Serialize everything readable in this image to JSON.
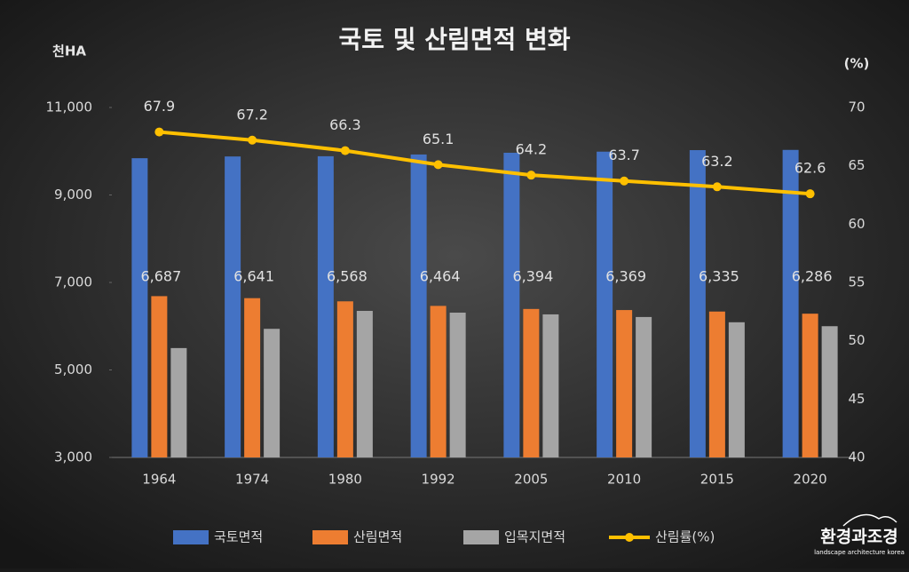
{
  "chart_data": {
    "type": "bar",
    "title": "국토 및 산림면적 변화",
    "y_label": "천HA",
    "y2_label": "(%)",
    "categories": [
      "1964",
      "1974",
      "1980",
      "1992",
      "2005",
      "2010",
      "2015",
      "2020"
    ],
    "series": [
      {
        "name": "국토면적",
        "color": "#4472c4",
        "values": [
          9840,
          9880,
          9885,
          9925,
          9965,
          9990,
          10025,
          10030
        ]
      },
      {
        "name": "산림면적",
        "color": "#ed7d31",
        "values": [
          6687,
          6641,
          6568,
          6464,
          6394,
          6369,
          6335,
          6286
        ],
        "value_labels": [
          "6,687",
          "6,641",
          "6,568",
          "6,464",
          "6,394",
          "6,369",
          "6,335",
          "6,286"
        ]
      },
      {
        "name": "입목지면적",
        "color": "#a5a5a5",
        "values": [
          5500,
          5940,
          6350,
          6310,
          6270,
          6210,
          6090,
          6000
        ]
      },
      {
        "name": "산림률(%)",
        "type": "line",
        "axis": "y2",
        "color": "#ffc000",
        "values": [
          67.9,
          67.2,
          66.3,
          65.1,
          64.2,
          63.7,
          63.2,
          62.6
        ]
      }
    ],
    "ylim": [
      3000,
      11000
    ],
    "yticks": [
      {
        "value": 3000,
        "label": "3,000"
      },
      {
        "value": 5000,
        "label": "5,000"
      },
      {
        "value": 7000,
        "label": "7,000"
      },
      {
        "value": 9000,
        "label": "9,000"
      },
      {
        "value": 11000,
        "label": "11,000"
      }
    ],
    "y2lim": [
      40,
      70
    ],
    "y2ticks": [
      40,
      45,
      50,
      55,
      60,
      65,
      70
    ],
    "legend": "bottom"
  },
  "watermark": {
    "title": "환경과조경",
    "subtitle": "landscape architecture korea"
  }
}
